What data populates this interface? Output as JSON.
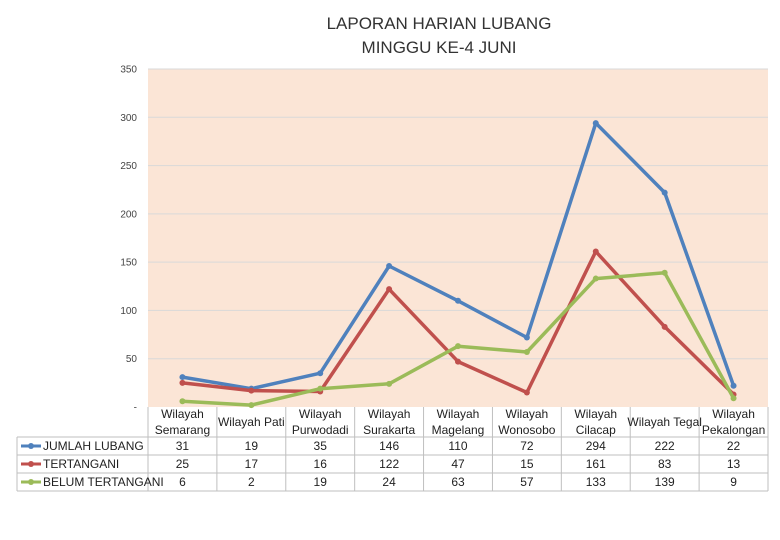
{
  "chart_data": {
    "type": "line",
    "title_lines": [
      "LAPORAN HARIAN LUBANG",
      "MINGGU KE-4 JUNI"
    ],
    "categories": [
      [
        "Wilayah",
        "Semarang"
      ],
      [
        "Wilayah Pati"
      ],
      [
        "Wilayah",
        "Purwodadi"
      ],
      [
        "Wilayah",
        "Surakarta"
      ],
      [
        "Wilayah",
        "Magelang"
      ],
      [
        "Wilayah",
        "Wonosobo"
      ],
      [
        "Wilayah",
        "Cilacap"
      ],
      [
        "Wilayah Tegal"
      ],
      [
        "Wilayah",
        "Pekalongan"
      ]
    ],
    "series": [
      {
        "name": "JUMLAH LUBANG",
        "color": "#4f81bd",
        "values": [
          31,
          19,
          35,
          146,
          110,
          72,
          294,
          222,
          22
        ]
      },
      {
        "name": "TERTANGANI",
        "color": "#c0504d",
        "values": [
          25,
          17,
          16,
          122,
          47,
          15,
          161,
          83,
          13
        ]
      },
      {
        "name": "BELUM TERTANGANI",
        "color": "#9bbb59",
        "values": [
          6,
          2,
          19,
          24,
          63,
          57,
          133,
          139,
          9
        ]
      }
    ],
    "ylim": [
      0,
      350
    ],
    "yticks": [
      {
        "value": 0,
        "label": "-"
      },
      {
        "value": 50,
        "label": "50"
      },
      {
        "value": 100,
        "label": "100"
      },
      {
        "value": 150,
        "label": "150"
      },
      {
        "value": 200,
        "label": "200"
      },
      {
        "value": 250,
        "label": "250"
      },
      {
        "value": 300,
        "label": "300"
      },
      {
        "value": 350,
        "label": "350"
      }
    ],
    "grid": true,
    "legend": "data-table-left",
    "plot_background": "#fbe5d6",
    "grid_color": "#d9d9d9"
  }
}
